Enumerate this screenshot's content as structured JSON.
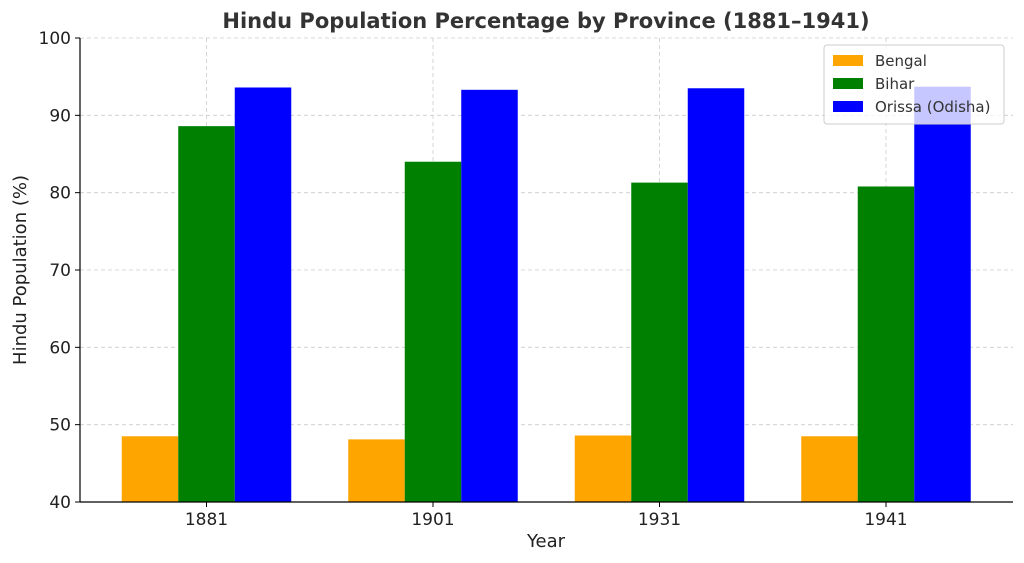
{
  "chart_data": {
    "type": "bar",
    "title": "Hindu Population Percentage by Province (1881–1941)",
    "xlabel": "Year",
    "ylabel": "Hindu Population (%)",
    "categories": [
      "1881",
      "1901",
      "1931",
      "1941"
    ],
    "ylim": [
      40,
      100
    ],
    "yticks": [
      40,
      50,
      60,
      70,
      80,
      90,
      100
    ],
    "grid": true,
    "legend_position": "top-right",
    "series": [
      {
        "name": "Bengal",
        "color": "#FFA500",
        "values": [
          48.5,
          48.1,
          48.6,
          48.5
        ]
      },
      {
        "name": "Bihar",
        "color": "#008000",
        "values": [
          88.6,
          84.0,
          81.3,
          80.8
        ]
      },
      {
        "name": "Orissa (Odisha)",
        "color": "#0000FF",
        "values": [
          93.6,
          93.3,
          93.5,
          93.7
        ]
      }
    ]
  }
}
